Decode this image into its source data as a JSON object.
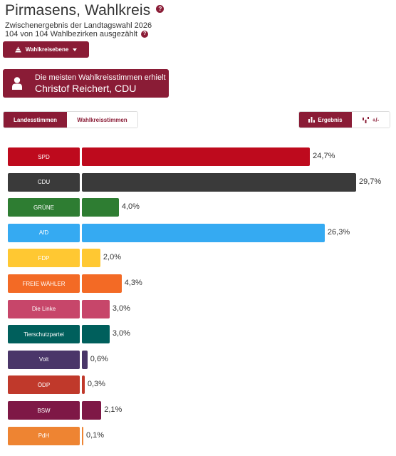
{
  "header": {
    "title": "Pirmasens, Wahlkreis",
    "subtitle1": "Zwischenergebnis der Landtagswahl 2026",
    "subtitle2": "104 von 104 Wahlbezirken ausgezählt",
    "help_glyph": "?"
  },
  "level_dropdown": {
    "label": "Wahlkreisebene",
    "icon": "pyramid-icon"
  },
  "winner": {
    "line1": "Die meisten Wahlkreisstimmen erhielt",
    "line2": "Christof Reichert, CDU",
    "icon": "person-icon"
  },
  "tabs": [
    {
      "label": "Landesstimmen",
      "active": true
    },
    {
      "label": "Wahlkreisstimmen",
      "active": false
    }
  ],
  "view_toggle": [
    {
      "label": "Ergebnis",
      "icon": "bar-chart-icon",
      "active": true
    },
    {
      "label": "+/-",
      "icon": "diff-icon",
      "active": false
    }
  ],
  "colors": {
    "brand": "#8a1c36"
  },
  "chart_data": {
    "type": "bar",
    "orientation": "horizontal",
    "categories": [
      "SPD",
      "CDU",
      "GRÜNE",
      "AfD",
      "FDP",
      "FREIE WÄHLER",
      "Die Linke",
      "Tierschutzpartei",
      "Volt",
      "ÖDP",
      "BSW",
      "PdH"
    ],
    "values": [
      24.7,
      29.7,
      4.0,
      26.3,
      2.0,
      4.3,
      3.0,
      3.0,
      0.6,
      0.3,
      2.1,
      0.1
    ],
    "value_labels": [
      "24,7%",
      "29,7%",
      "4,0%",
      "26,3%",
      "2,0%",
      "4,3%",
      "3,0%",
      "3,0%",
      "0,6%",
      "0,3%",
      "2,1%",
      "0,1%"
    ],
    "colors": [
      "#be0a1d",
      "#3a3a3a",
      "#2e7d32",
      "#35aaf2",
      "#ffc832",
      "#f36a25",
      "#c7466a",
      "#005f5c",
      "#4a3669",
      "#c0392b",
      "#7e1846",
      "#ee8432"
    ],
    "unit": "%",
    "xlim": [
      0,
      29.7
    ]
  }
}
